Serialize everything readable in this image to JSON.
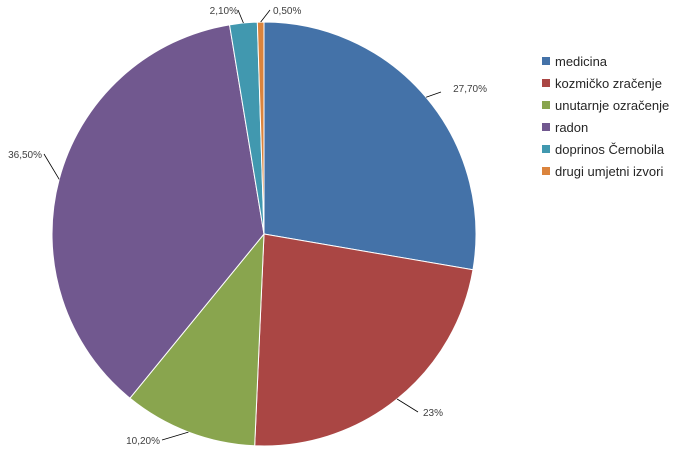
{
  "chart_data": {
    "type": "pie",
    "title": "",
    "start_angle_deg": 0,
    "direction": "clockwise",
    "legend_position": "right",
    "slices": [
      {
        "label": "medicina",
        "value": 27.7,
        "display": "27,70%",
        "color": "#4472A8"
      },
      {
        "label": "kozmičko zračenje",
        "value": 23.0,
        "display": "23%",
        "color": "#AA4644"
      },
      {
        "label": "unutarnje ozračenje",
        "value": 10.2,
        "display": "10,20%",
        "color": "#89A54E"
      },
      {
        "label": "radon",
        "value": 36.5,
        "display": "36,50%",
        "color": "#71588F"
      },
      {
        "label": "doprinos Černobila",
        "value": 2.1,
        "display": "2,10%",
        "color": "#4198AF"
      },
      {
        "label": "drugi umjetni izvori",
        "value": 0.5,
        "display": "0,50%",
        "color": "#DB843D"
      }
    ]
  }
}
